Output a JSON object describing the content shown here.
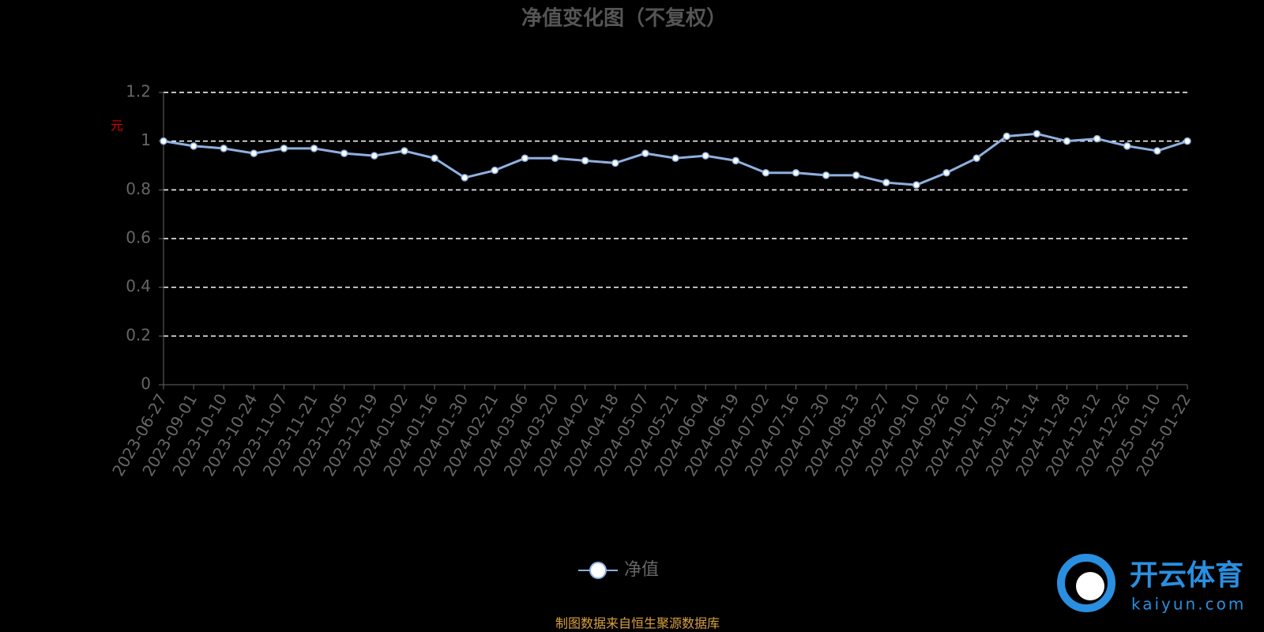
{
  "chart_data": {
    "type": "line",
    "title": "净值变化图（不复权）",
    "y_label": "元",
    "categories": [
      "2023-06-27",
      "2023-09-01",
      "2023-10-10",
      "2023-10-24",
      "2023-11-07",
      "2023-11-21",
      "2023-12-05",
      "2023-12-19",
      "2024-01-02",
      "2024-01-16",
      "2024-01-30",
      "2024-02-21",
      "2024-03-06",
      "2024-03-20",
      "2024-04-02",
      "2024-04-18",
      "2024-05-07",
      "2024-05-21",
      "2024-06-04",
      "2024-06-19",
      "2024-07-02",
      "2024-07-16",
      "2024-07-30",
      "2024-08-13",
      "2024-08-27",
      "2024-09-10",
      "2024-09-26",
      "2024-10-17",
      "2024-10-31",
      "2024-11-14",
      "2024-11-28",
      "2024-12-12",
      "2024-12-26",
      "2025-01-10",
      "2025-01-22"
    ],
    "series": [
      {
        "name": "净值",
        "color": "#8fb0e0",
        "values": [
          1.0,
          0.98,
          0.97,
          0.95,
          0.97,
          0.97,
          0.95,
          0.94,
          0.96,
          0.93,
          0.85,
          0.88,
          0.93,
          0.93,
          0.92,
          0.91,
          0.95,
          0.93,
          0.94,
          0.92,
          0.87,
          0.87,
          0.86,
          0.86,
          0.83,
          0.82,
          0.87,
          0.93,
          1.02,
          1.03,
          1.0,
          1.01,
          0.98,
          0.96,
          1.0
        ]
      }
    ],
    "ylim": [
      0,
      1.2
    ],
    "yticks": [
      0,
      0.2,
      0.4,
      0.6,
      0.8,
      1,
      1.2
    ],
    "grid": true,
    "source": "制图数据来自恒生聚源数据库",
    "watermark": {
      "brand": "开云体育",
      "url": "kaiyun.com"
    }
  }
}
